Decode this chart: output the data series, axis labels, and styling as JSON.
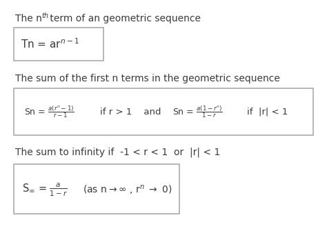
{
  "bg_color": "#ffffff",
  "text_color": "#3a3a3a",
  "box_edge_color": "#aaaaaa",
  "section1_header": "The n",
  "section1_sup": "th",
  "section1_header2": " term of an geometric sequence",
  "section2_header": "The sum of the first n terms in the geometric sequence",
  "section3_header": "The sum to infinity if  -1 < r < 1  or  |r| < 1",
  "figsize": [
    4.74,
    3.48
  ],
  "dpi": 100
}
